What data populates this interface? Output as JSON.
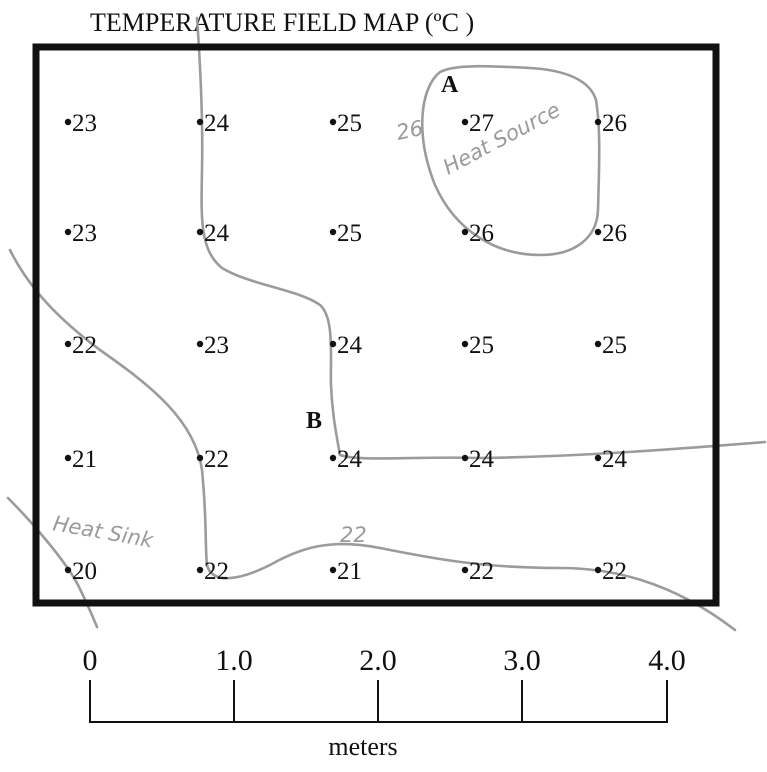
{
  "title": "TEMPERATURE FIELD MAP (ºC )",
  "grid": {
    "rows": [
      [
        "23",
        "24",
        "25",
        "27",
        "26"
      ],
      [
        "23",
        "24",
        "25",
        "26",
        "26"
      ],
      [
        "22",
        "23",
        "24",
        "25",
        "25"
      ],
      [
        "21",
        "22",
        "24",
        "24",
        "24"
      ],
      [
        "20",
        "22",
        "21",
        "22",
        "22"
      ]
    ]
  },
  "points": {
    "a": "A",
    "b": "B"
  },
  "annotations": {
    "source_value": "26",
    "source_label": "Heat Source",
    "sink_label": "Heat Sink",
    "contour_22": "22"
  },
  "scale": {
    "ticks": [
      "0",
      "1.0",
      "2.0",
      "3.0",
      "4.0"
    ],
    "units": "meters"
  },
  "colors": {
    "frame": "#111111",
    "isoline": "#9b9b9b",
    "handwriting": "#9a9a9a"
  }
}
